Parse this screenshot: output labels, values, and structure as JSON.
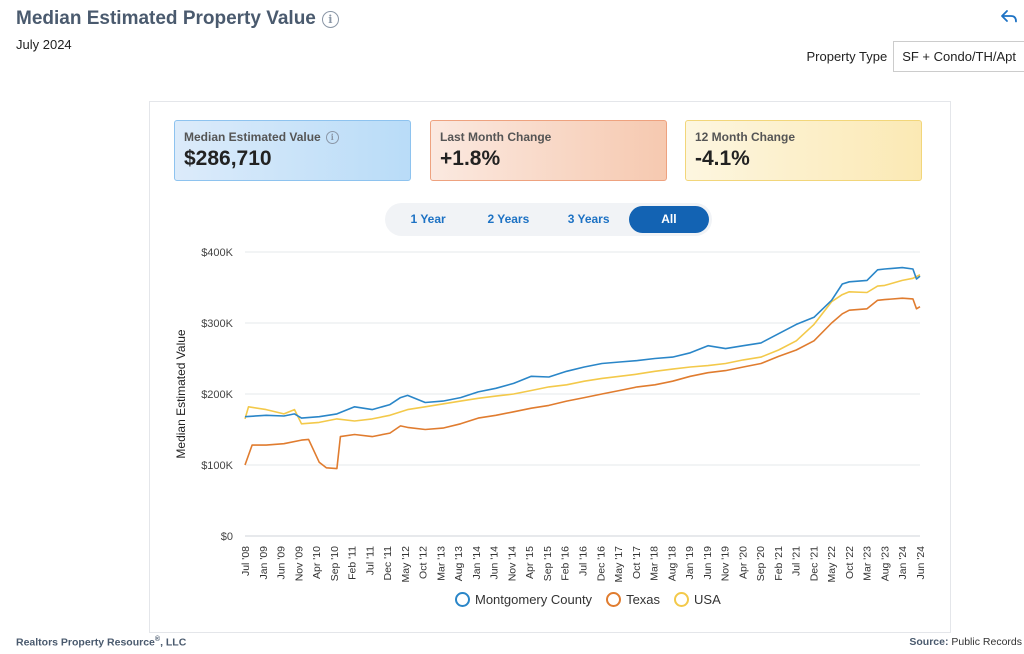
{
  "header": {
    "title": "Median Estimated Property Value",
    "date": "July 2024",
    "property_type_label": "Property Type",
    "property_type_value": "SF + Condo/TH/Apt"
  },
  "cards": [
    {
      "label": "Median Estimated Value",
      "value": "$286,710"
    },
    {
      "label": "Last Month Change",
      "value": "+1.8%"
    },
    {
      "label": "12 Month Change",
      "value": "-4.1%"
    }
  ],
  "range_buttons": [
    "1 Year",
    "2 Years",
    "3 Years",
    "All"
  ],
  "active_range": "All",
  "footer": {
    "left": "Realtors Property Resource",
    "left_suffix": ", LLC",
    "right_label": "Source:",
    "right_value": "Public Records"
  },
  "colors": {
    "montgomery": "#2a86c8",
    "texas": "#e07c2f",
    "usa": "#f3c94a",
    "accent": "#1363b3"
  },
  "chart_data": {
    "type": "line",
    "ylabel": "Median Estimated Value",
    "ylim": [
      0,
      400000
    ],
    "yticks": [
      0,
      100000,
      200000,
      300000,
      400000
    ],
    "ytick_labels": [
      "$0",
      "$100K",
      "$200K",
      "$300K",
      "$400K"
    ],
    "xtick_labels": [
      "Jul '08",
      "Jan '09",
      "Jun '09",
      "Nov '09",
      "Apr '10",
      "Sep '10",
      "Feb '11",
      "Jul '11",
      "Dec '11",
      "May '12",
      "Oct '12",
      "Mar '13",
      "Aug '13",
      "Jan '14",
      "Jun '14",
      "Nov '14",
      "Apr '15",
      "Sep '15",
      "Feb '16",
      "Jul '16",
      "Dec '16",
      "May '17",
      "Oct '17",
      "Mar '18",
      "Aug '18",
      "Jan '19",
      "Jun '19",
      "Nov '19",
      "Apr '20",
      "Sep '20",
      "Feb '21",
      "Jul '21",
      "Dec '21",
      "May '22",
      "Oct '22",
      "Mar '23",
      "Aug '23",
      "Jan '24",
      "Jun '24"
    ],
    "grid": true,
    "legend": "bottom",
    "series": [
      {
        "name": "Montgomery County",
        "color_key": "montgomery",
        "points": [
          [
            "2008-07",
            168000
          ],
          [
            "2009-01",
            170000
          ],
          [
            "2009-06",
            169000
          ],
          [
            "2009-09",
            172000
          ],
          [
            "2009-11",
            166000
          ],
          [
            "2010-04",
            168000
          ],
          [
            "2010-09",
            172000
          ],
          [
            "2011-02",
            182000
          ],
          [
            "2011-07",
            178000
          ],
          [
            "2011-12",
            185000
          ],
          [
            "2012-03",
            195000
          ],
          [
            "2012-05",
            198000
          ],
          [
            "2012-10",
            188000
          ],
          [
            "2013-03",
            190000
          ],
          [
            "2013-08",
            195000
          ],
          [
            "2014-01",
            203000
          ],
          [
            "2014-06",
            208000
          ],
          [
            "2014-11",
            215000
          ],
          [
            "2015-04",
            225000
          ],
          [
            "2015-09",
            224000
          ],
          [
            "2016-02",
            232000
          ],
          [
            "2016-07",
            238000
          ],
          [
            "2016-12",
            243000
          ],
          [
            "2017-05",
            245000
          ],
          [
            "2017-10",
            247000
          ],
          [
            "2018-03",
            250000
          ],
          [
            "2018-08",
            252000
          ],
          [
            "2019-01",
            258000
          ],
          [
            "2019-06",
            268000
          ],
          [
            "2019-11",
            264000
          ],
          [
            "2020-04",
            268000
          ],
          [
            "2020-09",
            272000
          ],
          [
            "2021-02",
            285000
          ],
          [
            "2021-07",
            298000
          ],
          [
            "2021-12",
            308000
          ],
          [
            "2022-05",
            332000
          ],
          [
            "2022-08",
            355000
          ],
          [
            "2022-10",
            358000
          ],
          [
            "2023-03",
            360000
          ],
          [
            "2023-06",
            375000
          ],
          [
            "2023-08",
            376000
          ],
          [
            "2024-01",
            378000
          ],
          [
            "2024-04",
            376000
          ],
          [
            "2024-05",
            362000
          ],
          [
            "2024-06",
            366000
          ]
        ]
      },
      {
        "name": "Texas",
        "color_key": "texas",
        "points": [
          [
            "2008-07",
            100000
          ],
          [
            "2008-09",
            128000
          ],
          [
            "2009-01",
            128000
          ],
          [
            "2009-06",
            130000
          ],
          [
            "2009-11",
            135000
          ],
          [
            "2010-01",
            136000
          ],
          [
            "2010-04",
            104000
          ],
          [
            "2010-06",
            96000
          ],
          [
            "2010-09",
            95000
          ],
          [
            "2010-10",
            140000
          ],
          [
            "2011-02",
            143000
          ],
          [
            "2011-07",
            140000
          ],
          [
            "2011-12",
            145000
          ],
          [
            "2012-03",
            155000
          ],
          [
            "2012-05",
            153000
          ],
          [
            "2012-10",
            150000
          ],
          [
            "2013-03",
            152000
          ],
          [
            "2013-08",
            158000
          ],
          [
            "2014-01",
            166000
          ],
          [
            "2014-06",
            170000
          ],
          [
            "2014-11",
            175000
          ],
          [
            "2015-04",
            180000
          ],
          [
            "2015-09",
            184000
          ],
          [
            "2016-02",
            190000
          ],
          [
            "2016-07",
            195000
          ],
          [
            "2016-12",
            200000
          ],
          [
            "2017-05",
            205000
          ],
          [
            "2017-10",
            210000
          ],
          [
            "2018-03",
            213000
          ],
          [
            "2018-08",
            218000
          ],
          [
            "2019-01",
            225000
          ],
          [
            "2019-06",
            230000
          ],
          [
            "2019-11",
            233000
          ],
          [
            "2020-04",
            238000
          ],
          [
            "2020-09",
            243000
          ],
          [
            "2021-02",
            253000
          ],
          [
            "2021-07",
            262000
          ],
          [
            "2021-12",
            275000
          ],
          [
            "2022-05",
            300000
          ],
          [
            "2022-08",
            313000
          ],
          [
            "2022-10",
            318000
          ],
          [
            "2023-03",
            320000
          ],
          [
            "2023-06",
            332000
          ],
          [
            "2023-08",
            333000
          ],
          [
            "2024-01",
            335000
          ],
          [
            "2024-04",
            334000
          ],
          [
            "2024-05",
            320000
          ],
          [
            "2024-06",
            323000
          ]
        ]
      },
      {
        "name": "USA",
        "color_key": "usa",
        "points": [
          [
            "2008-07",
            165000
          ],
          [
            "2008-08",
            182000
          ],
          [
            "2009-01",
            178000
          ],
          [
            "2009-06",
            172000
          ],
          [
            "2009-09",
            178000
          ],
          [
            "2009-11",
            158000
          ],
          [
            "2010-04",
            160000
          ],
          [
            "2010-09",
            165000
          ],
          [
            "2011-02",
            162000
          ],
          [
            "2011-07",
            165000
          ],
          [
            "2011-12",
            170000
          ],
          [
            "2012-05",
            178000
          ],
          [
            "2012-10",
            182000
          ],
          [
            "2013-03",
            186000
          ],
          [
            "2013-08",
            190000
          ],
          [
            "2014-01",
            194000
          ],
          [
            "2014-06",
            197000
          ],
          [
            "2014-11",
            200000
          ],
          [
            "2015-04",
            205000
          ],
          [
            "2015-09",
            210000
          ],
          [
            "2016-02",
            213000
          ],
          [
            "2016-07",
            218000
          ],
          [
            "2016-12",
            222000
          ],
          [
            "2017-05",
            225000
          ],
          [
            "2017-10",
            228000
          ],
          [
            "2018-03",
            232000
          ],
          [
            "2018-08",
            235000
          ],
          [
            "2019-01",
            238000
          ],
          [
            "2019-06",
            240000
          ],
          [
            "2019-11",
            243000
          ],
          [
            "2020-04",
            248000
          ],
          [
            "2020-09",
            252000
          ],
          [
            "2021-02",
            262000
          ],
          [
            "2021-07",
            275000
          ],
          [
            "2021-12",
            298000
          ],
          [
            "2022-05",
            330000
          ],
          [
            "2022-08",
            340000
          ],
          [
            "2022-10",
            344000
          ],
          [
            "2023-03",
            343000
          ],
          [
            "2023-06",
            352000
          ],
          [
            "2023-08",
            353000
          ],
          [
            "2024-01",
            360000
          ],
          [
            "2024-04",
            363000
          ],
          [
            "2024-06",
            368000
          ]
        ]
      }
    ]
  }
}
